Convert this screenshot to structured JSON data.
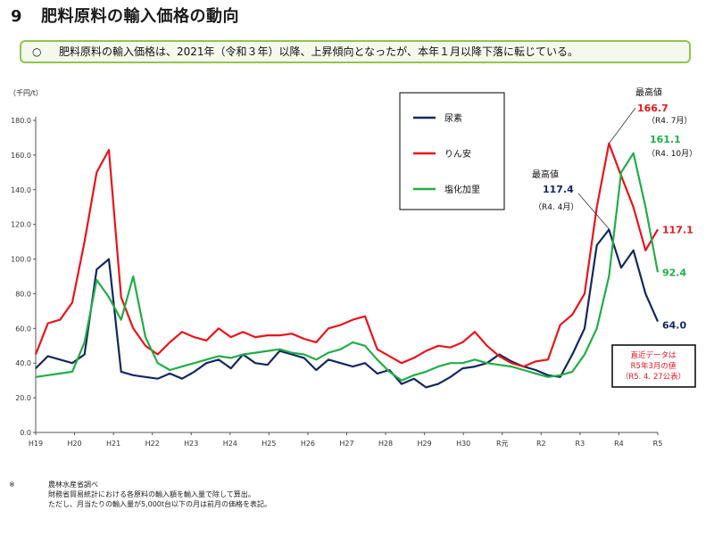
{
  "page": {
    "section_number": "9",
    "title": "肥料原料の輸入価格の動向",
    "summary_bullet": "○",
    "summary": "肥料原料の輸入価格は、2021年（令和３年）以降、上昇傾向となったが、本年１月以降下落に転じている。"
  },
  "footnote": {
    "mark": "※",
    "lines": [
      "農林水産省調べ",
      "財務省貿易統計における各原料の輸入額を輸入量で除して算出。",
      "ただし、月当たりの輸入量が5,000t台以下の月は前月の価格を表記。"
    ]
  },
  "chart_data": {
    "type": "line",
    "title": "肥料原料の輸入価格の動向",
    "ylabel": "（千円/t）",
    "ylim": [
      0,
      180
    ],
    "yticks": [
      "0.0",
      "20.0",
      "40.0",
      "60.0",
      "80.0",
      "100.0",
      "120.0",
      "140.0",
      "160.0",
      "180.0"
    ],
    "x_domain": [
      0,
      51
    ],
    "x": [
      0,
      1,
      2,
      3,
      4,
      5,
      6,
      7,
      8,
      9,
      10,
      11,
      12,
      13,
      14,
      15,
      16,
      17,
      18,
      19,
      20,
      21,
      22,
      23,
      24,
      25,
      26,
      27,
      28,
      29,
      30,
      31,
      32,
      33,
      34,
      35,
      36,
      37,
      38,
      39,
      40,
      41,
      42,
      43,
      44,
      45,
      46,
      47,
      48,
      49,
      50,
      51
    ],
    "xlabels": [
      "H19",
      "H20",
      "H21",
      "H22",
      "H23",
      "H24",
      "H25",
      "H26",
      "H27",
      "H28",
      "H29",
      "H30",
      "R元",
      "R2",
      "R3",
      "R4",
      "R5"
    ],
    "grid": false,
    "legend": {
      "position": "top-center",
      "entries": [
        "尿素",
        "りん安",
        "塩化加里"
      ]
    },
    "series": [
      {
        "name": "尿素",
        "color": "#14285f",
        "values": [
          37,
          44,
          42,
          40,
          45,
          94,
          100,
          35,
          33,
          32,
          31,
          34,
          31,
          35,
          40,
          42,
          37,
          45,
          40,
          39,
          47,
          45,
          43,
          36,
          42,
          40,
          38,
          40,
          34,
          36,
          28,
          31,
          26,
          28,
          32,
          37,
          38,
          40,
          45,
          41,
          38,
          36,
          33,
          32,
          45,
          60,
          108,
          117,
          95,
          105,
          80,
          64
        ]
      },
      {
        "name": "りん安",
        "color": "#e8141b",
        "values": [
          45,
          63,
          65,
          75,
          110,
          150,
          163,
          78,
          60,
          50,
          45,
          52,
          58,
          55,
          53,
          60,
          55,
          58,
          55,
          56,
          56,
          57,
          54,
          52,
          60,
          62,
          65,
          67,
          48,
          44,
          40,
          43,
          47,
          50,
          49,
          52,
          58,
          50,
          44,
          40,
          38,
          41,
          42,
          62,
          68,
          80,
          130,
          166.7,
          148,
          130,
          105,
          117.1
        ]
      },
      {
        "name": "塩化加里",
        "color": "#22ad47",
        "values": [
          32,
          33,
          34,
          35,
          52,
          88,
          78,
          65,
          90,
          55,
          40,
          36,
          38,
          40,
          42,
          44,
          43,
          45,
          46,
          47,
          48,
          46,
          45,
          42,
          46,
          48,
          52,
          50,
          42,
          35,
          30,
          33,
          35,
          38,
          40,
          40,
          42,
          40,
          39,
          38,
          36,
          34,
          32,
          33,
          35,
          45,
          60,
          90,
          150,
          161.1,
          130,
          92.4
        ]
      }
    ],
    "annotations": [
      {
        "id": "max_phos",
        "label": "最高値",
        "value": "166.7",
        "date": "（R4. 7月）",
        "x": 47,
        "y": 166.7
      },
      {
        "id": "max_pot",
        "value": "161.1",
        "date": "（R4. 10月）",
        "x": 49,
        "y": 161.1
      },
      {
        "id": "max_urea",
        "label": "最高値",
        "value": "117.4",
        "date": "（R4. 4月）",
        "x": 47,
        "y": 117.4
      },
      {
        "id": "end_phos",
        "value": "117.1",
        "x": 51,
        "y": 117.1
      },
      {
        "id": "end_pot",
        "value": "92.4",
        "x": 51,
        "y": 92.4
      },
      {
        "id": "end_urea",
        "value": "64.0",
        "x": 51,
        "y": 64.0
      }
    ],
    "latest_note": [
      "直近データは",
      "R5年3月の値",
      "（R5. 4. 27公表）"
    ]
  }
}
